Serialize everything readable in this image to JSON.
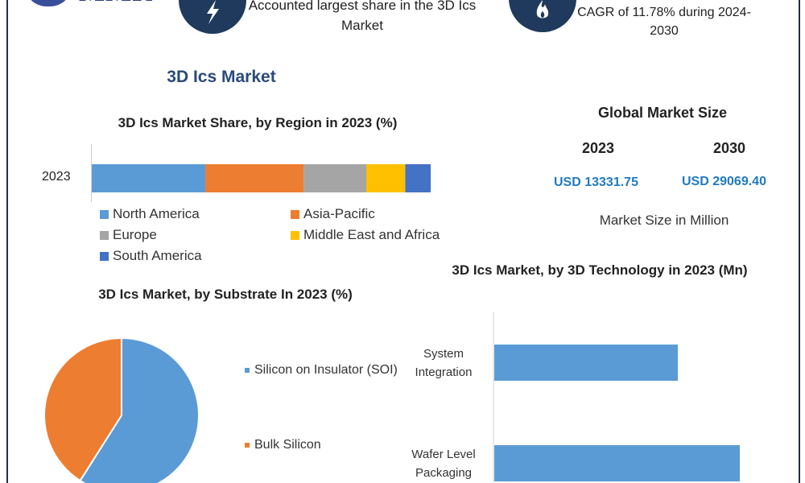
{
  "banner": {
    "logo_text": "MMR",
    "left_text": "Accounted largest share in the 3D Ics Market",
    "right_text": "CAGR of 11.78% during 2024-2030",
    "bolt_icon": "bolt-icon",
    "flame_icon": "flame-icon"
  },
  "main_title": "3D Ics Market",
  "global_market_size": {
    "title": "Global Market Size",
    "year_1": "2023",
    "year_2": "2030",
    "value_1": "USD 13331.75",
    "value_2": "USD 29069.40",
    "unit": "Market Size in Million"
  },
  "colors": {
    "blue": "#5b9bd5",
    "orange": "#ed7d31",
    "gray": "#a5a5a5",
    "yellow": "#ffc000",
    "dark_blue": "#4472c4",
    "navy": "#1f3a5c",
    "value_blue": "#1f7ac1"
  },
  "chart_data": [
    {
      "type": "bar",
      "orientation": "horizontal-stacked",
      "title": "3D Ics Market Share, by Region in 2023 (%)",
      "categories": [
        "2023"
      ],
      "xlim": [
        0,
        100
      ],
      "series": [
        {
          "name": "North America",
          "values": [
            33.5
          ],
          "color": "#5b9bd5"
        },
        {
          "name": "Asia-Pacific",
          "values": [
            29
          ],
          "color": "#ed7d31"
        },
        {
          "name": "Europe",
          "values": [
            18.5
          ],
          "color": "#a5a5a5"
        },
        {
          "name": "Middle East and Africa",
          "values": [
            11.5
          ],
          "color": "#ffc000"
        },
        {
          "name": "South America",
          "values": [
            7.5
          ],
          "color": "#4472c4"
        }
      ],
      "legend": "bottom"
    },
    {
      "type": "pie",
      "title": "3D Ics Market, by Substrate In 2023 (%)",
      "slices": [
        {
          "label": "Silicon on Insulator (SOI)",
          "value": 59,
          "color": "#5b9bd5"
        },
        {
          "label": "Bulk Silicon",
          "value": 41,
          "color": "#ed7d31"
        }
      ],
      "legend": "right"
    },
    {
      "type": "bar",
      "orientation": "horizontal",
      "title": "3D Ics Market, by 3D Technology in 2023 (Mn)",
      "categories": [
        "System Integration",
        "Wafer Level Packaging"
      ],
      "values": [
        2265,
        3030
      ],
      "xlim": [
        0,
        4000
      ],
      "color": "#5b9bd5"
    }
  ]
}
